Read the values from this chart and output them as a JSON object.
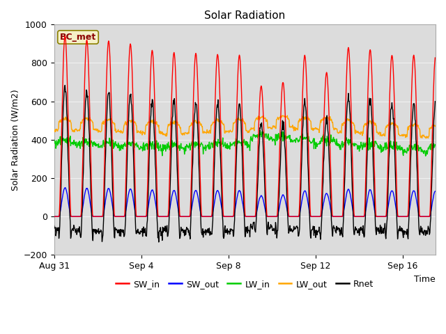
{
  "title": "Solar Radiation",
  "ylabel": "Solar Radiation (W/m2)",
  "xlabel": "Time",
  "ylim": [
    -200,
    1000
  ],
  "yticks": [
    -200,
    0,
    200,
    400,
    600,
    800,
    1000
  ],
  "plot_bg_color": "#dcdcdc",
  "fig_bg_color": "#ffffff",
  "legend_label": "BC_met",
  "legend_label_color": "#8B0000",
  "legend_box_facecolor": "#f5f0c8",
  "legend_box_edgecolor": "#8B8000",
  "legend_entries": [
    "SW_in",
    "SW_out",
    "LW_in",
    "LW_out",
    "Rnet"
  ],
  "legend_colors": [
    "red",
    "blue",
    "#00cc00",
    "orange",
    "black"
  ],
  "xtick_labels": [
    "Aug 31",
    "Sep 4",
    "Sep 8",
    "Sep 12",
    "Sep 16"
  ],
  "xtick_positions": [
    0,
    4,
    8,
    12,
    16
  ],
  "n_days": 17.5,
  "dt": 0.02,
  "grid_color": "#f0f0f0",
  "line_width": 1.0
}
